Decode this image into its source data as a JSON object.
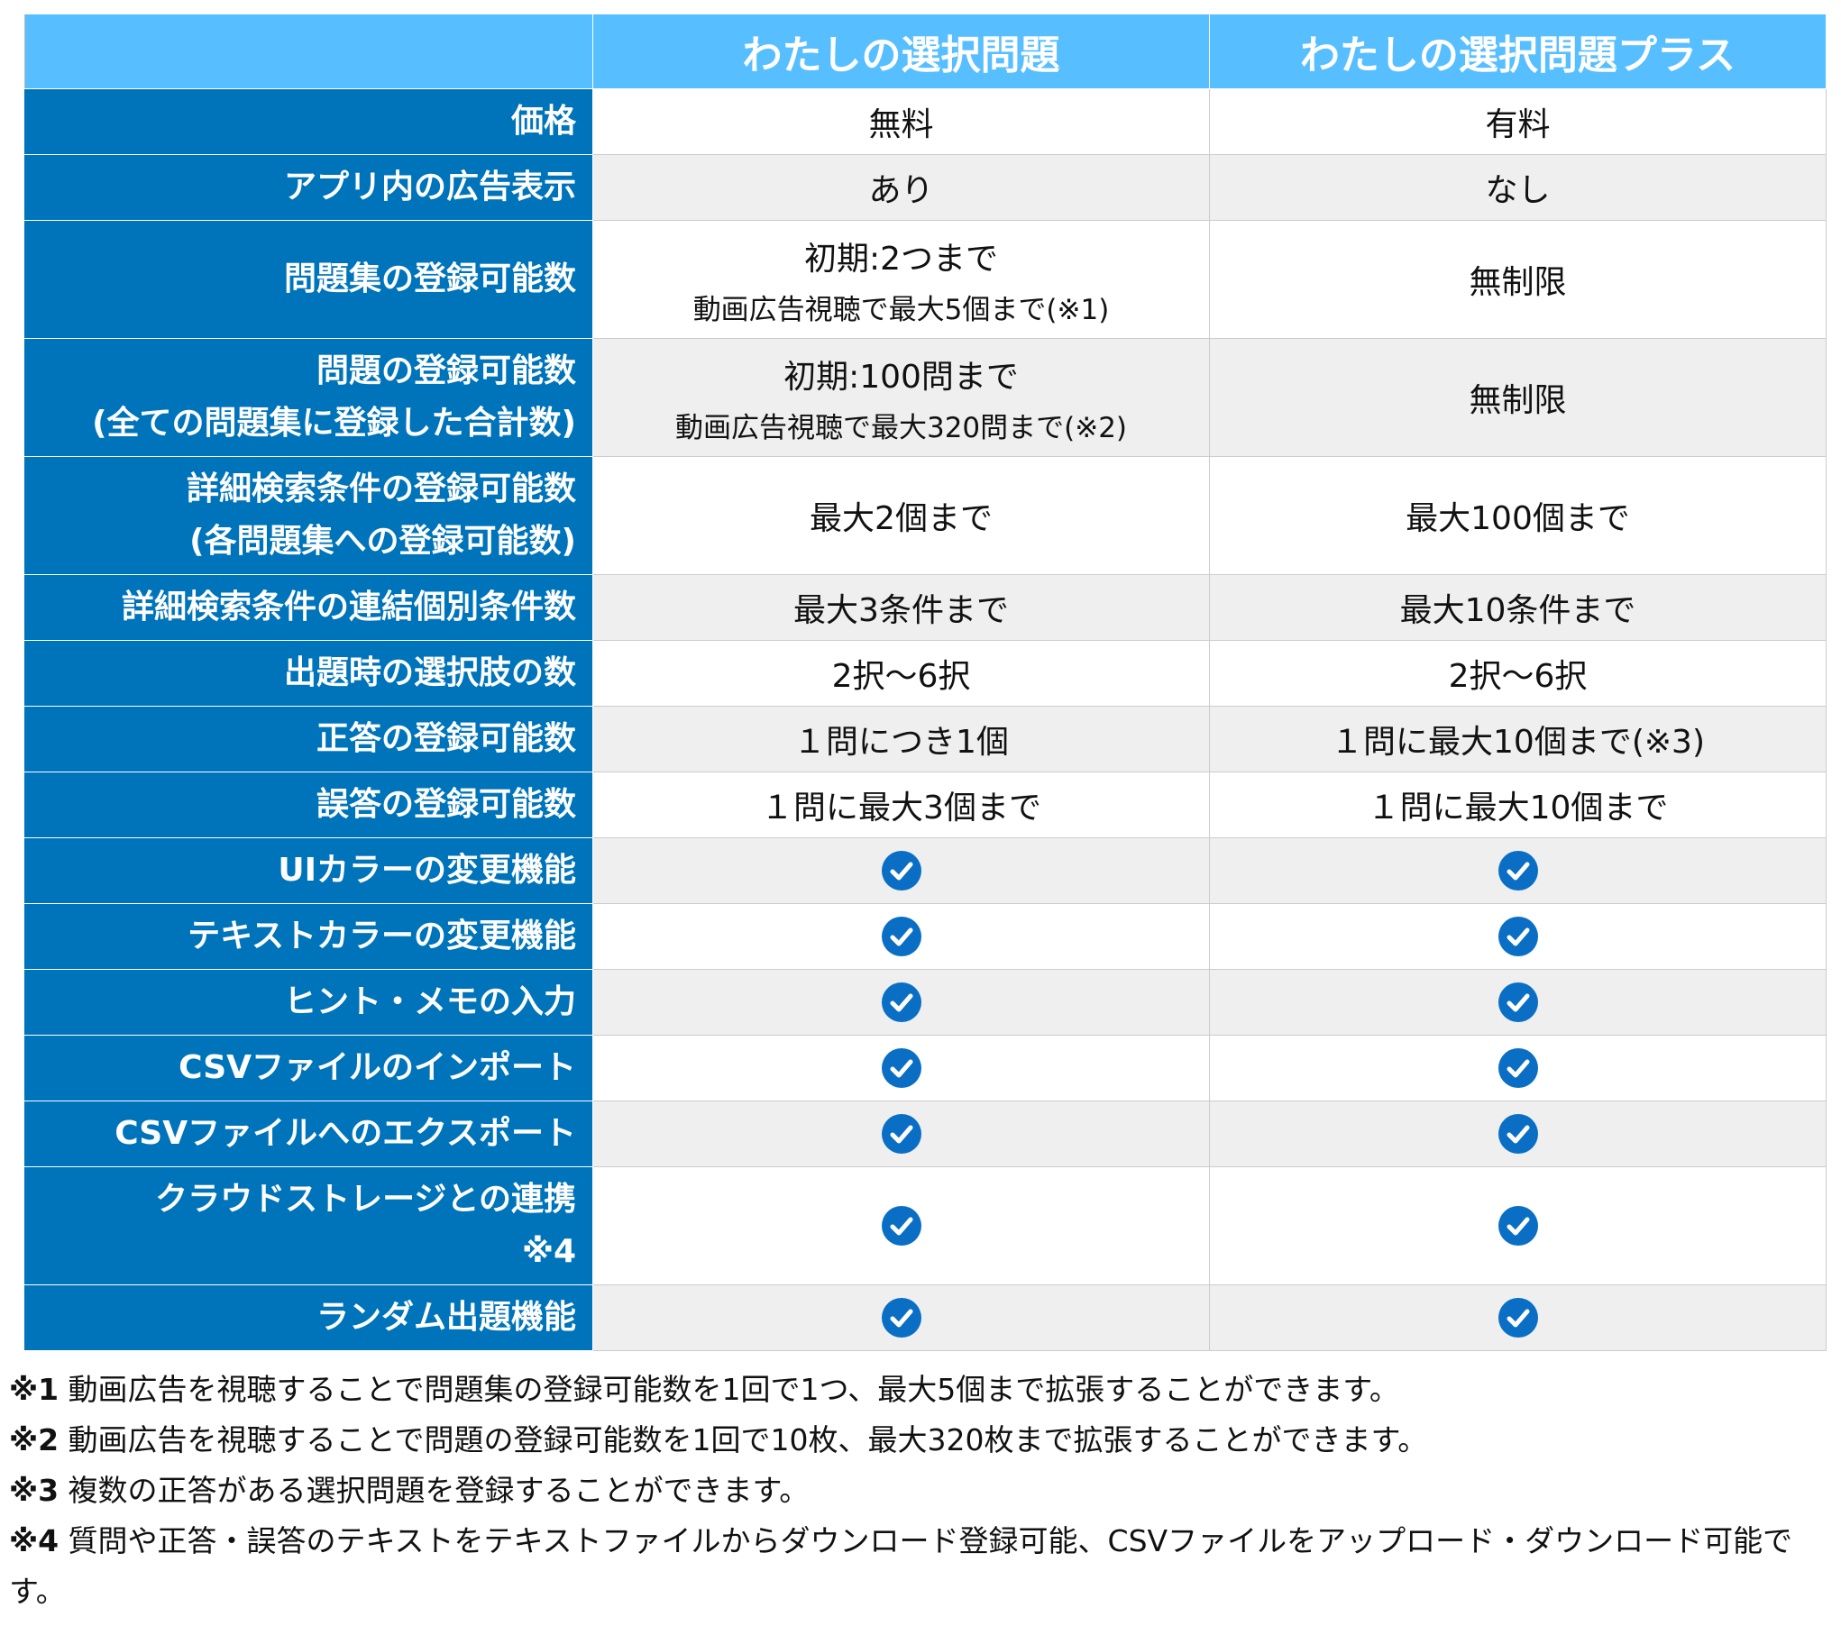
{
  "header": {
    "col1": "",
    "col2": "わたしの選択問題",
    "col3": "わたしの選択問題プラス"
  },
  "rows": [
    {
      "label": [
        "価格"
      ],
      "free": [
        "無料"
      ],
      "plus": [
        "有料"
      ]
    },
    {
      "label": [
        "アプリ内の広告表示"
      ],
      "free": [
        "あり"
      ],
      "plus": [
        "なし"
      ]
    },
    {
      "label": [
        "問題集の登録可能数"
      ],
      "free": [
        "初期:2つまで",
        "動画広告視聴で最大5個まで(※1)"
      ],
      "plus": [
        "無制限"
      ]
    },
    {
      "label": [
        "問題の登録可能数",
        "(全ての問題集に登録した合計数)"
      ],
      "free": [
        "初期:100問まで",
        "動画広告視聴で最大320問まで(※2)"
      ],
      "plus": [
        "無制限"
      ]
    },
    {
      "label": [
        "詳細検索条件の登録可能数",
        "(各問題集への登録可能数)"
      ],
      "free": [
        "最大2個まで"
      ],
      "plus": [
        "最大100個まで"
      ]
    },
    {
      "label": [
        "詳細検索条件の連結個別条件数"
      ],
      "free": [
        "最大3条件まで"
      ],
      "plus": [
        "最大10条件まで"
      ]
    },
    {
      "label": [
        "出題時の選択肢の数"
      ],
      "free": [
        "2択〜6択"
      ],
      "plus": [
        "2択〜6択"
      ]
    },
    {
      "label": [
        "正答の登録可能数"
      ],
      "free": [
        "１問につき1個"
      ],
      "plus": [
        "１問に最大10個まで(※3)"
      ]
    },
    {
      "label": [
        "誤答の登録可能数"
      ],
      "free": [
        "１問に最大3個まで"
      ],
      "plus": [
        "１問に最大10個まで"
      ]
    },
    {
      "label": [
        "UIカラーの変更機能"
      ],
      "free": "check",
      "plus": "check"
    },
    {
      "label": [
        "テキストカラーの変更機能"
      ],
      "free": "check",
      "plus": "check"
    },
    {
      "label": [
        "ヒント・メモの入力"
      ],
      "free": "check",
      "plus": "check"
    },
    {
      "label": [
        "CSVファイルのインポート"
      ],
      "free": "check",
      "plus": "check"
    },
    {
      "label": [
        "CSVファイルへのエクスポート"
      ],
      "free": "check",
      "plus": "check"
    },
    {
      "label": [
        "クラウドストレージとの連携",
        "※4"
      ],
      "free": "check",
      "plus": "check"
    },
    {
      "label": [
        "ランダム出題機能"
      ],
      "free": "check",
      "plus": "check"
    }
  ],
  "notes": [
    {
      "mark": "※1",
      "text": " 動画広告を視聴することで問題集の登録可能数を1回で1つ、最大5個まで拡張することができます。"
    },
    {
      "mark": "※2",
      "text": " 動画広告を視聴することで問題の登録可能数を1回で10枚、最大320枚まで拡張することができます。"
    },
    {
      "mark": "※3",
      "text": " 複数の正答がある選択問題を登録することができます。"
    },
    {
      "mark": "※4",
      "text": " 質問や正答・誤答のテキストをテキストファイルからダウンロード登録可能、CSVファイルをアップロード・ダウンロード可能です。"
    }
  ],
  "colors": {
    "header": "#57bfff",
    "label": "#0074ba",
    "check": "#0a6fc4",
    "alt_row": "#efefef"
  }
}
